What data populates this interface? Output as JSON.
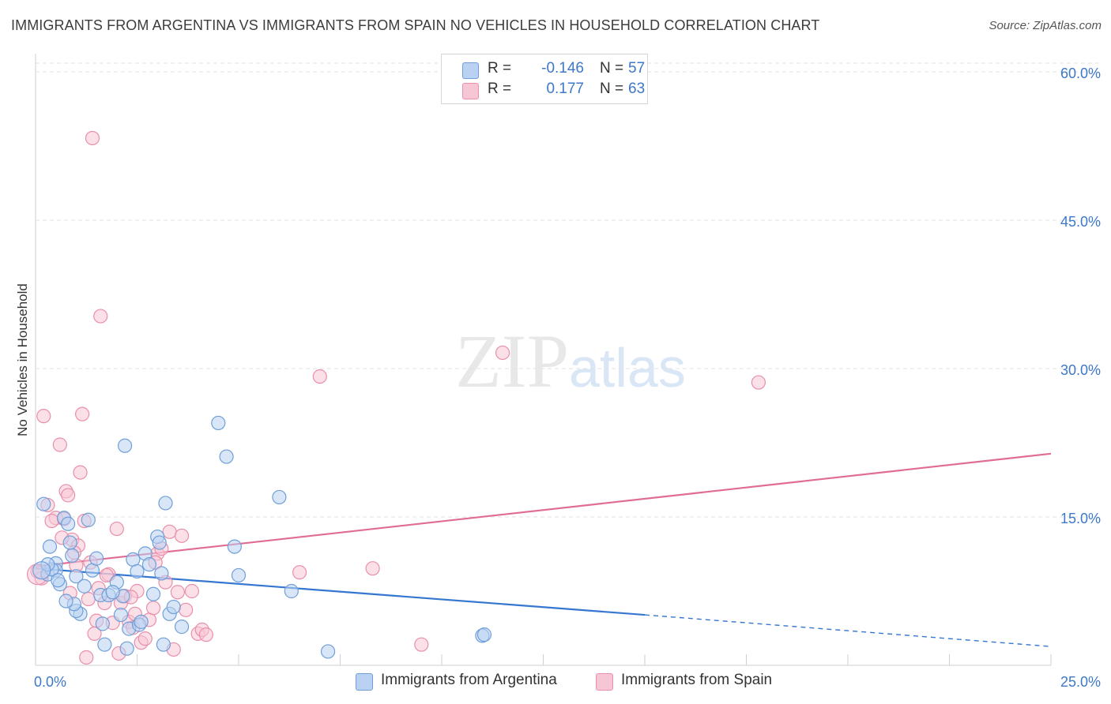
{
  "header": {
    "title": "IMMIGRANTS FROM ARGENTINA VS IMMIGRANTS FROM SPAIN NO VEHICLES IN HOUSEHOLD CORRELATION CHART",
    "source": "Source: ZipAtlas.com"
  },
  "watermark": "ZIPatlas",
  "colors": {
    "argentina_fill": "#b9d1f3",
    "argentina_stroke": "#6f9fd8",
    "argentina_line": "#3576d0",
    "spain_fill": "#f7c6d5",
    "spain_stroke": "#e98fab",
    "spain_line": "#e06c96",
    "tick_text": "#3d78c9"
  },
  "legend": {
    "rows": [
      {
        "r_label": "R =",
        "r_value": "-0.146",
        "n_label": "N =",
        "n_value": "57"
      },
      {
        "r_label": "R =",
        "r_value": "0.177",
        "n_label": "N =",
        "n_value": "63"
      }
    ]
  },
  "bottom_legend": {
    "argentina": "Immigrants from Argentina",
    "spain": "Immigrants from Spain"
  },
  "chart_data": {
    "type": "scatter",
    "title": "IMMIGRANTS FROM ARGENTINA VS IMMIGRANTS FROM SPAIN NO VEHICLES IN HOUSEHOLD CORRELATION CHART",
    "xlabel": "",
    "ylabel": "No Vehicles in Household",
    "xlim": [
      0,
      25
    ],
    "ylim": [
      0,
      62
    ],
    "x_tick_labels": [
      "0.0%",
      "25.0%"
    ],
    "y_ticks": [
      {
        "value": 15,
        "label": "15.0%"
      },
      {
        "value": 30,
        "label": "30.0%"
      },
      {
        "value": 45,
        "label": "45.0%"
      },
      {
        "value": 60,
        "label": "60.0%"
      }
    ],
    "series": [
      {
        "name": "Immigrants from Argentina",
        "color": "argentina",
        "r": -0.146,
        "n": 57,
        "trend": {
          "x_start": 0.0,
          "y_start": 9.8,
          "x_solid_end": 15.0,
          "y_solid_end": 5.1,
          "x_dash_end": 25.0,
          "y_dash_end": 1.9
        },
        "points": [
          [
            0.2,
            16.3
          ],
          [
            0.3,
            9.2
          ],
          [
            0.35,
            12.0
          ],
          [
            0.5,
            10.3
          ],
          [
            0.6,
            8.2
          ],
          [
            0.7,
            14.9
          ],
          [
            0.8,
            14.3
          ],
          [
            0.9,
            11.1
          ],
          [
            0.5,
            9.6
          ],
          [
            0.4,
            9.7
          ],
          [
            0.85,
            12.4
          ],
          [
            1.0,
            9.0
          ],
          [
            1.3,
            14.7
          ],
          [
            1.1,
            5.2
          ],
          [
            1.2,
            8.0
          ],
          [
            1.4,
            9.6
          ],
          [
            1.5,
            10.8
          ],
          [
            1.6,
            7.1
          ],
          [
            1.65,
            4.2
          ],
          [
            1.8,
            7.1
          ],
          [
            2.0,
            8.4
          ],
          [
            2.1,
            5.1
          ],
          [
            2.15,
            7.0
          ],
          [
            2.2,
            22.2
          ],
          [
            2.3,
            3.7
          ],
          [
            2.4,
            10.7
          ],
          [
            2.5,
            9.5
          ],
          [
            2.55,
            4.1
          ],
          [
            2.6,
            4.4
          ],
          [
            2.7,
            11.3
          ],
          [
            2.8,
            10.2
          ],
          [
            2.9,
            7.2
          ],
          [
            3.0,
            13.0
          ],
          [
            3.05,
            12.4
          ],
          [
            3.1,
            9.3
          ],
          [
            3.2,
            16.4
          ],
          [
            3.3,
            5.2
          ],
          [
            3.4,
            5.9
          ],
          [
            3.6,
            3.9
          ],
          [
            4.5,
            24.5
          ],
          [
            4.7,
            21.1
          ],
          [
            4.9,
            12.0
          ],
          [
            5.0,
            9.1
          ],
          [
            6.0,
            17.0
          ],
          [
            6.3,
            7.5
          ],
          [
            7.2,
            1.4
          ],
          [
            11.0,
            3.0
          ],
          [
            11.05,
            3.1
          ],
          [
            1.0,
            5.5
          ],
          [
            0.95,
            6.2
          ],
          [
            1.7,
            2.1
          ],
          [
            2.25,
            1.7
          ],
          [
            3.15,
            2.1
          ],
          [
            1.9,
            7.4
          ],
          [
            0.75,
            6.5
          ],
          [
            0.55,
            8.6
          ],
          [
            0.3,
            10.2
          ]
        ]
      },
      {
        "name": "Immigrants from Spain",
        "color": "spain",
        "r": 0.177,
        "n": 63,
        "trend": {
          "x_start": 0.0,
          "y_start": 10.0,
          "x_end": 25.0,
          "y_end": 21.4
        },
        "points": [
          [
            0.05,
            9.5
          ],
          [
            0.2,
            25.2
          ],
          [
            0.3,
            16.2
          ],
          [
            0.5,
            14.9
          ],
          [
            0.6,
            22.3
          ],
          [
            0.7,
            14.8
          ],
          [
            0.75,
            17.6
          ],
          [
            0.8,
            17.2
          ],
          [
            0.9,
            12.7
          ],
          [
            1.0,
            10.1
          ],
          [
            1.05,
            12.1
          ],
          [
            1.1,
            19.5
          ],
          [
            1.15,
            25.4
          ],
          [
            1.2,
            14.6
          ],
          [
            1.3,
            6.7
          ],
          [
            1.35,
            10.4
          ],
          [
            1.4,
            53.3
          ],
          [
            1.5,
            4.5
          ],
          [
            1.6,
            35.3
          ],
          [
            1.7,
            6.3
          ],
          [
            1.8,
            9.2
          ],
          [
            1.9,
            4.3
          ],
          [
            2.0,
            13.8
          ],
          [
            2.1,
            6.3
          ],
          [
            2.2,
            7.0
          ],
          [
            2.3,
            4.4
          ],
          [
            2.4,
            3.8
          ],
          [
            2.5,
            7.5
          ],
          [
            2.6,
            2.3
          ],
          [
            2.7,
            2.7
          ],
          [
            2.8,
            4.6
          ],
          [
            2.9,
            5.8
          ],
          [
            3.0,
            11.3
          ],
          [
            3.1,
            11.8
          ],
          [
            3.2,
            8.4
          ],
          [
            3.3,
            13.5
          ],
          [
            3.4,
            1.6
          ],
          [
            3.5,
            7.4
          ],
          [
            3.6,
            13.1
          ],
          [
            3.7,
            5.6
          ],
          [
            4.0,
            3.2
          ],
          [
            4.1,
            3.6
          ],
          [
            4.2,
            3.1
          ],
          [
            6.5,
            9.4
          ],
          [
            7.0,
            29.2
          ],
          [
            8.3,
            9.8
          ],
          [
            9.5,
            2.1
          ],
          [
            11.5,
            31.6
          ],
          [
            17.8,
            28.6
          ],
          [
            1.25,
            0.8
          ],
          [
            2.05,
            1.2
          ],
          [
            0.4,
            14.6
          ],
          [
            0.95,
            11.4
          ],
          [
            1.55,
            7.8
          ],
          [
            2.35,
            6.9
          ],
          [
            0.65,
            12.9
          ],
          [
            3.85,
            7.5
          ],
          [
            1.45,
            3.2
          ],
          [
            2.95,
            10.4
          ],
          [
            1.75,
            9.1
          ],
          [
            0.85,
            7.3
          ],
          [
            2.45,
            5.2
          ],
          [
            0.15,
            8.8
          ]
        ]
      }
    ]
  }
}
